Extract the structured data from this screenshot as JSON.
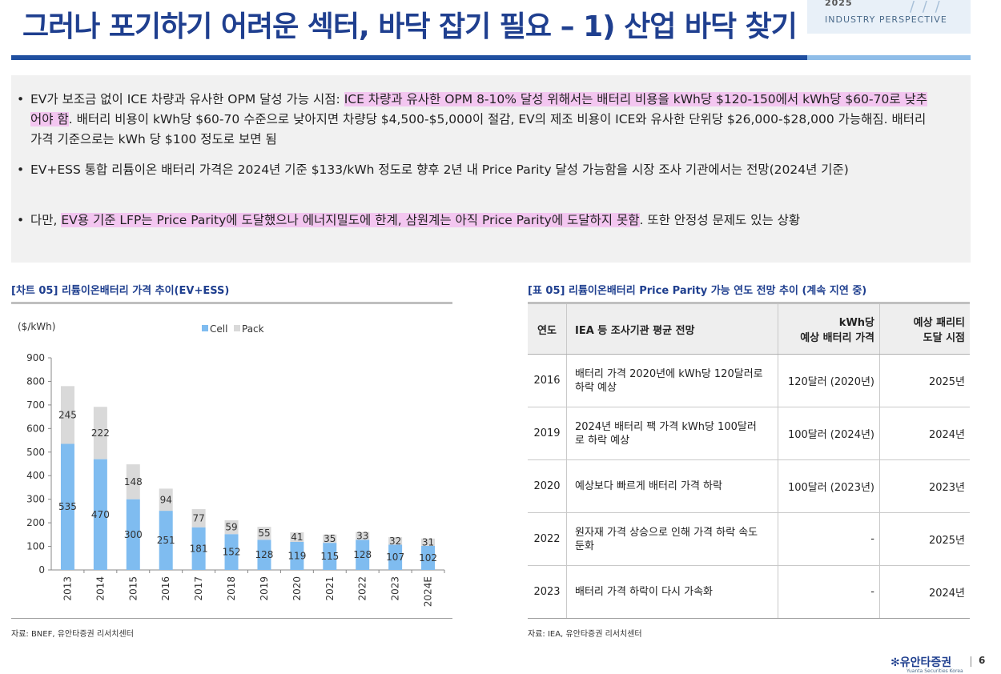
{
  "header": {
    "title": "그러나 포기하기 어려운 섹터, 바닥 잡기 필요 – 1) 산업 바닥 찾기",
    "badge_year": "2025",
    "badge_label": "INDUSTRY PERSPECTIVE"
  },
  "bullets": [
    {
      "prefix": "EV가 보조금 없이 ICE 차량과 유사한 OPM 달성 가능 시점: ",
      "highlight": "ICE 차량과 유사한 OPM 8-10% 달성 위해서는 배터리 비용을 kWh당 $120-150에서 kWh당 $60-70로 낮추어야 함",
      "suffix": ". 배터리 비용이 kWh당 $60-70 수준으로 낮아지면 차량당 $4,500-$5,000이 절감, EV의 제조 비용이 ICE와 유사한 단위당 $26,000-$28,000 가능해짐. 배터리 가격 기준으로는 kWh 당 $100 정도로 보면 됨"
    },
    {
      "prefix": "EV+ESS 통합 리튬이온 배터리 가격은 2024년 기준 $133/kWh 정도로 향후 2년 내 Price Parity 달성 가능함을 시장 조사 기관에서는 전망(2024년 기준)",
      "highlight": "",
      "suffix": ""
    },
    {
      "prefix": "다만, ",
      "highlight": "EV용 기준 LFP는 Price Parity에 도달했으나 에너지밀도에 한계, 삼원계는 아직 Price Parity에 도달하지 못함",
      "suffix": ". 또한 안정성 문제도 있는 상황"
    }
  ],
  "chart_section": {
    "caption": "[차트 05] 리튬이온배터리 가격 추이(EV+ESS)",
    "source": "자료: BNEF, 유안타증권 리서치센터"
  },
  "chart_data": {
    "type": "bar",
    "stacked": true,
    "ylabel": "($/kWh)",
    "ylim": [
      0,
      900
    ],
    "yticks": [
      0,
      100,
      200,
      300,
      400,
      500,
      600,
      700,
      800,
      900
    ],
    "categories": [
      "2013",
      "2014",
      "2015",
      "2016",
      "2017",
      "2018",
      "2019",
      "2020",
      "2021",
      "2022",
      "2023",
      "2024E"
    ],
    "series": [
      {
        "name": "Cell",
        "color": "#7fbcf0",
        "values": [
          535,
          470,
          300,
          251,
          181,
          152,
          128,
          119,
          115,
          128,
          107,
          102
        ]
      },
      {
        "name": "Pack",
        "color": "#d9d9d9",
        "values": [
          245,
          222,
          148,
          94,
          77,
          59,
          55,
          41,
          35,
          33,
          32,
          31
        ]
      }
    ],
    "legend_position": "top-center",
    "grid": false,
    "data_labels": true
  },
  "table_section": {
    "caption": "[표 05] 리튬이온배터리 Price Parity 가능 연도 전망 추이 (계속 지연 중)",
    "source": "자료: IEA, 유안타증권 리서치센터",
    "headers": [
      "연도",
      "IEA 등 조사기관 평균 전망",
      "kWh당\n예상 배터리 가격",
      "예상 패리티\n도달 시점"
    ],
    "rows": [
      [
        "2016",
        "배터리 가격 2020년에 kWh당 120달러로 하락 예상",
        "120달러 (2020년)",
        "2025년"
      ],
      [
        "2019",
        "2024년 배터리 팩 가격 kWh당 100달러로 하락 예상",
        "100달러 (2024년)",
        "2024년"
      ],
      [
        "2020",
        "예상보다 빠르게 배터리 가격 하락",
        "100달러 (2023년)",
        "2023년"
      ],
      [
        "2022",
        "원자재 가격 상승으로 인해 가격 하락 속도 둔화",
        "-",
        "2025년"
      ],
      [
        "2023",
        "배터리 가격 하락이 다시 가속화",
        "-",
        "2024년"
      ]
    ]
  },
  "footer": {
    "logo_text": "유안타증권",
    "logo_sub": "Yuanta Securities Korea",
    "page_number": "6"
  }
}
